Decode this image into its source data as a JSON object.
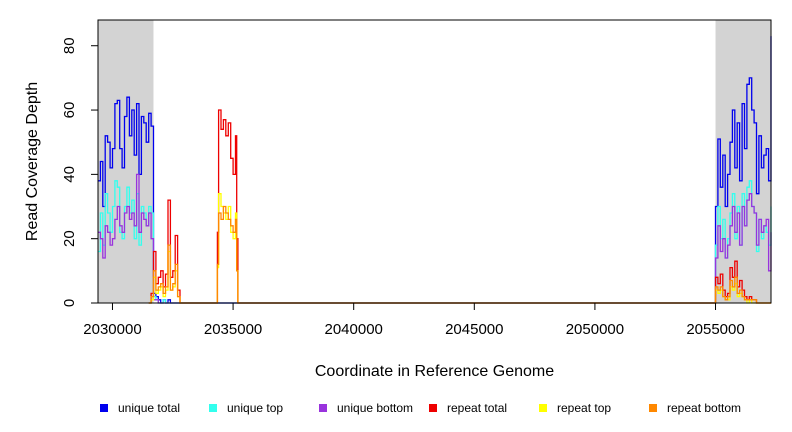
{
  "chart_data": {
    "type": "line",
    "title": "",
    "xlabel": "Coordinate in Reference Genome",
    "ylabel": "Read Coverage Depth",
    "xlim": [
      2029400,
      2057300
    ],
    "ylim": [
      0,
      88
    ],
    "grid": false,
    "legend_position": "bottom",
    "shaded_regions": [
      {
        "x_start": 2029400,
        "x_end": 2031700,
        "color": "#d3d3d3"
      },
      {
        "x_start": 2055000,
        "x_end": 2057300,
        "color": "#d3d3d3"
      }
    ],
    "x_ticks": [
      2030000,
      2035000,
      2040000,
      2045000,
      2050000,
      2055000
    ],
    "x_tick_labels": [
      "2030000",
      "2035000",
      "2040000",
      "2045000",
      "2050000",
      "2055000"
    ],
    "y_ticks": [
      0,
      20,
      40,
      60,
      80
    ],
    "y_tick_labels": [
      "0",
      "20",
      "40",
      "60",
      "80"
    ],
    "series": [
      {
        "name": "unique total",
        "color": "#0000ee",
        "x": [
          2029400,
          2029500,
          2029600,
          2029700,
          2029800,
          2029900,
          2030000,
          2030100,
          2030200,
          2030300,
          2030400,
          2030500,
          2030600,
          2030700,
          2030800,
          2030900,
          2031000,
          2031100,
          2031200,
          2031300,
          2031400,
          2031500,
          2031600,
          2031700,
          2031800,
          2031900,
          2032000,
          2032100,
          2032200,
          2032300,
          2032400,
          2032500,
          2032600,
          2055000,
          2055100,
          2055200,
          2055300,
          2055400,
          2055500,
          2055600,
          2055700,
          2055800,
          2055900,
          2056000,
          2056100,
          2056200,
          2056300,
          2056400,
          2056500,
          2056600,
          2056700,
          2056800,
          2056900,
          2057000,
          2057100,
          2057200,
          2057300
        ],
        "y": [
          38,
          44,
          30,
          52,
          50,
          42,
          48,
          62,
          63,
          48,
          42,
          58,
          64,
          52,
          60,
          46,
          62,
          40,
          58,
          56,
          50,
          59,
          55,
          3,
          2,
          1,
          0,
          1,
          0,
          1,
          0,
          0,
          0,
          30,
          51,
          36,
          46,
          30,
          40,
          50,
          60,
          42,
          56,
          38,
          62,
          48,
          68,
          70,
          60,
          56,
          34,
          52,
          42,
          46,
          48,
          38,
          83
        ]
      },
      {
        "name": "unique top",
        "color": "#33ffee",
        "x": [
          2029400,
          2029500,
          2029600,
          2029700,
          2029800,
          2029900,
          2030000,
          2030100,
          2030200,
          2030300,
          2030400,
          2030500,
          2030600,
          2030700,
          2030800,
          2030900,
          2031000,
          2031100,
          2031200,
          2031300,
          2031400,
          2031500,
          2031600,
          2031700,
          2031800,
          2031900,
          2032000,
          2032100,
          2032200,
          2032300,
          2032400,
          2032500,
          2032600,
          2055000,
          2055100,
          2055200,
          2055300,
          2055400,
          2055500,
          2055600,
          2055700,
          2055800,
          2055900,
          2056000,
          2056100,
          2056200,
          2056300,
          2056400,
          2056500,
          2056600,
          2056700,
          2056800,
          2056900,
          2057000,
          2057100,
          2057200,
          2057300
        ],
        "y": [
          16,
          28,
          18,
          34,
          28,
          22,
          30,
          38,
          36,
          22,
          20,
          30,
          36,
          28,
          32,
          20,
          34,
          18,
          30,
          28,
          24,
          30,
          28,
          2,
          1,
          0,
          0,
          1,
          0,
          0,
          0,
          0,
          0,
          18,
          30,
          20,
          26,
          14,
          20,
          28,
          34,
          20,
          30,
          18,
          34,
          24,
          36,
          38,
          30,
          28,
          16,
          26,
          20,
          24,
          22,
          18,
          30
        ]
      },
      {
        "name": "unique bottom",
        "color": "#9933dd",
        "x": [
          2029400,
          2029500,
          2029600,
          2029700,
          2029800,
          2029900,
          2030000,
          2030100,
          2030200,
          2030300,
          2030400,
          2030500,
          2030600,
          2030700,
          2030800,
          2030900,
          2031000,
          2031100,
          2031200,
          2031300,
          2031400,
          2031500,
          2031600,
          2031700,
          2031800,
          2031900,
          2032000,
          2032100,
          2032200,
          2032300,
          2032400,
          2032500,
          2032600,
          2055000,
          2055100,
          2055200,
          2055300,
          2055400,
          2055500,
          2055600,
          2055700,
          2055800,
          2055900,
          2056000,
          2056100,
          2056200,
          2056300,
          2056400,
          2056500,
          2056600,
          2056700,
          2056800,
          2056900,
          2057000,
          2057100,
          2057200,
          2057300
        ],
        "y": [
          22,
          20,
          14,
          24,
          22,
          18,
          20,
          26,
          30,
          24,
          22,
          28,
          30,
          26,
          28,
          24,
          40,
          22,
          28,
          26,
          24,
          28,
          20,
          1,
          1,
          0,
          0,
          0,
          0,
          0,
          0,
          0,
          0,
          14,
          24,
          16,
          20,
          14,
          18,
          24,
          30,
          22,
          28,
          18,
          30,
          24,
          32,
          34,
          30,
          28,
          18,
          26,
          22,
          24,
          26,
          10,
          22
        ]
      },
      {
        "name": "repeat total",
        "color": "#ee0000",
        "x": [
          2031500,
          2031600,
          2031700,
          2031800,
          2031900,
          2032000,
          2032100,
          2032200,
          2032300,
          2032400,
          2032500,
          2032600,
          2032700,
          2032800,
          2034300,
          2034350,
          2034400,
          2034500,
          2034600,
          2034700,
          2034800,
          2034900,
          2035000,
          2035100,
          2035150,
          2035200,
          2055000,
          2055100,
          2055200,
          2055300,
          2055400,
          2055500,
          2055600,
          2055700,
          2055800,
          2055900,
          2056000,
          2056100,
          2056200,
          2056300,
          2056400,
          2056500,
          2056600,
          2056700,
          2056800,
          2057000,
          2057300
        ],
        "y": [
          0,
          3,
          16,
          6,
          8,
          10,
          5,
          9,
          32,
          8,
          10,
          21,
          4,
          0,
          0,
          22,
          60,
          54,
          57,
          52,
          56,
          45,
          40,
          52,
          20,
          0,
          8,
          6,
          9,
          4,
          2,
          3,
          11,
          8,
          13,
          5,
          7,
          4,
          2,
          1,
          2,
          1,
          1,
          0,
          0,
          0,
          0
        ]
      },
      {
        "name": "repeat top",
        "color": "#ffff00",
        "x": [
          2031500,
          2031600,
          2031700,
          2031800,
          2031900,
          2032000,
          2032100,
          2032200,
          2032300,
          2032400,
          2032500,
          2032600,
          2032700,
          2032800,
          2034300,
          2034350,
          2034400,
          2034500,
          2034600,
          2034700,
          2034800,
          2034900,
          2035000,
          2035100,
          2035150,
          2035200,
          2055000,
          2055100,
          2055200,
          2055300,
          2055400,
          2055500,
          2055600,
          2055700,
          2055800,
          2055900,
          2056000,
          2056100,
          2056200,
          2056300,
          2056400,
          2056500,
          2056600,
          2056700,
          2056800,
          2057000,
          2057300
        ],
        "y": [
          0,
          1,
          8,
          3,
          4,
          5,
          2,
          4,
          16,
          4,
          5,
          10,
          2,
          0,
          0,
          11,
          34,
          30,
          28,
          26,
          30,
          22,
          20,
          28,
          10,
          0,
          4,
          3,
          4,
          2,
          1,
          1,
          5,
          4,
          6,
          2,
          3,
          2,
          1,
          0,
          1,
          0,
          0,
          0,
          0,
          0,
          0
        ]
      },
      {
        "name": "repeat bottom",
        "color": "#ff8800",
        "x": [
          2031500,
          2031600,
          2031700,
          2031800,
          2031900,
          2032000,
          2032100,
          2032200,
          2032300,
          2032400,
          2032500,
          2032600,
          2032700,
          2032800,
          2034300,
          2034350,
          2034400,
          2034500,
          2034600,
          2034700,
          2034800,
          2034900,
          2035000,
          2035100,
          2035150,
          2035200,
          2055000,
          2055100,
          2055200,
          2055300,
          2055400,
          2055500,
          2055600,
          2055700,
          2055800,
          2055900,
          2056000,
          2056100,
          2056200,
          2056300,
          2056400,
          2056500,
          2056600,
          2056700,
          2056800,
          2057000,
          2057300
        ],
        "y": [
          0,
          2,
          10,
          4,
          5,
          6,
          3,
          5,
          18,
          4,
          6,
          12,
          2,
          0,
          0,
          12,
          28,
          26,
          30,
          28,
          26,
          24,
          22,
          26,
          10,
          0,
          5,
          4,
          5,
          2,
          1,
          2,
          7,
          5,
          8,
          3,
          4,
          2,
          1,
          1,
          1,
          1,
          1,
          0,
          0,
          0,
          0
        ]
      }
    ]
  }
}
